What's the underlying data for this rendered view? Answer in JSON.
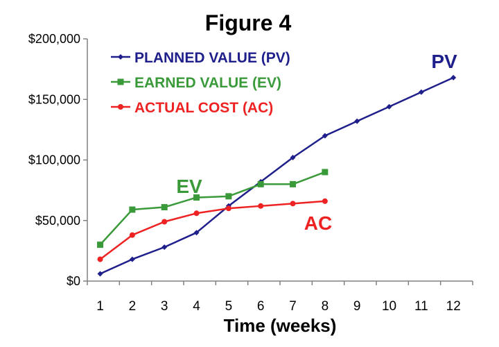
{
  "chart_data": {
    "type": "line",
    "title": "Figure 4",
    "xlabel": "Time (weeks)",
    "ylabel": "",
    "x_ticks": [
      "1",
      "2",
      "3",
      "4",
      "5",
      "6",
      "7",
      "8",
      "9",
      "10",
      "11",
      "12"
    ],
    "y_ticks": [
      "$0",
      "$50,000",
      "$100,000",
      "$150,000",
      "$200,000"
    ],
    "xlim": [
      0.6,
      12.6
    ],
    "ylim": [
      0,
      200000
    ],
    "grid": false,
    "legend_position": "top-left",
    "series": [
      {
        "name": "PLANNED VALUE (PV)",
        "color": "#1f1f8c",
        "marker": "diamond",
        "x": [
          1,
          2,
          3,
          4,
          5,
          6,
          7,
          8,
          9,
          10,
          11,
          12
        ],
        "values": [
          6000,
          18000,
          28000,
          40000,
          62000,
          82000,
          102000,
          120000,
          132000,
          144000,
          156000,
          168000
        ]
      },
      {
        "name": "EARNED VALUE (EV)",
        "color": "#3a9a3a",
        "marker": "square",
        "x": [
          1,
          2,
          3,
          4,
          5,
          6,
          7,
          8
        ],
        "values": [
          30000,
          59000,
          61000,
          69000,
          70000,
          80000,
          80000,
          90000
        ]
      },
      {
        "name": "ACTUAL COST (AC)",
        "color": "#ee2222",
        "marker": "circle",
        "x": [
          1,
          2,
          3,
          4,
          5,
          6,
          7,
          8
        ],
        "values": [
          18000,
          38000,
          49000,
          56000,
          60000,
          62000,
          64000,
          66000
        ]
      }
    ],
    "annotations": [
      {
        "text": "PV",
        "color": "#1f1f8c"
      },
      {
        "text": "EV",
        "color": "#3a9a3a"
      },
      {
        "text": "AC",
        "color": "#ee2222"
      }
    ]
  }
}
